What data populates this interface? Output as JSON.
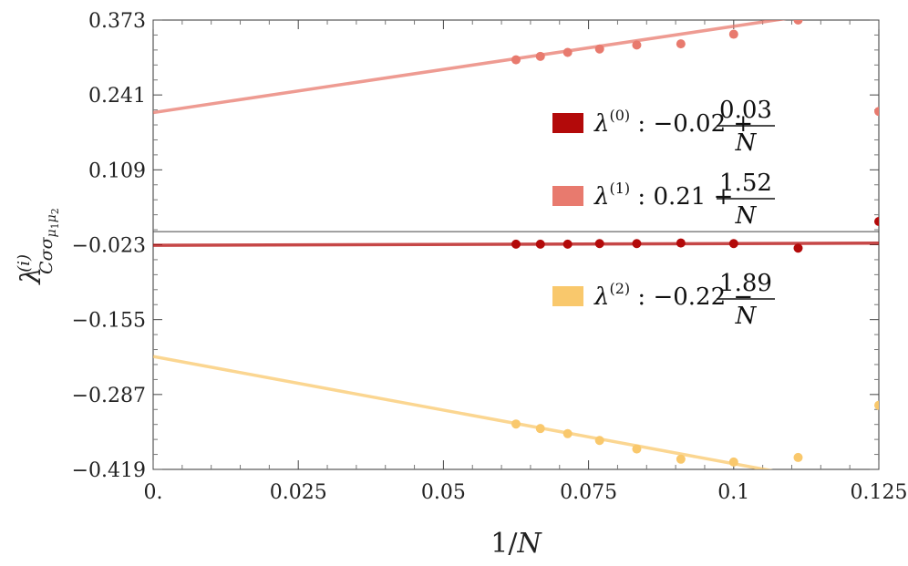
{
  "chart_data": {
    "type": "scatter",
    "xlabel": "1/N",
    "ylabel": "λ^(i)_{Cσσ_{μ1μ2}}",
    "xlim": [
      0,
      0.125
    ],
    "ylim": [
      -0.419,
      0.373
    ],
    "x_ticks": [
      "0.",
      "0.025",
      "0.05",
      "0.075",
      "0.1",
      "0.125"
    ],
    "x_tick_values": [
      0,
      0.025,
      0.05,
      0.075,
      0.1,
      0.125
    ],
    "y_ticks": [
      "0.373",
      "0.241",
      "0.109",
      "−0.023",
      "−0.155",
      "−0.287",
      "−0.419"
    ],
    "y_tick_values": [
      0.373,
      0.241,
      0.109,
      -0.023,
      -0.155,
      -0.287,
      -0.419
    ],
    "zero_line": 0,
    "legend_position": "right",
    "series": [
      {
        "legend": "λ^(0) : −0.02 + 0.03/N",
        "sup": "(0)",
        "const": "−0.02",
        "sign": "+",
        "numerator": "0.03",
        "denominator": "N",
        "color": "#b30a0a",
        "fit": {
          "intercept": -0.024,
          "slope": 0.03
        },
        "x": [
          0.0625,
          0.0667,
          0.0714,
          0.0769,
          0.0833,
          0.0909,
          0.1,
          0.1111,
          0.125
        ],
        "y": [
          -0.022,
          -0.022,
          -0.022,
          -0.021,
          -0.021,
          -0.02,
          -0.021,
          -0.029,
          0.018
        ]
      },
      {
        "legend": "λ^(1) : 0.21 + 1.52/N",
        "sup": "(1)",
        "const": "0.21",
        "sign": "+",
        "numerator": "1.52",
        "denominator": "N",
        "color": "#e87a6e",
        "fit": {
          "intercept": 0.21,
          "slope": 1.52
        },
        "x": [
          0.0625,
          0.0667,
          0.0714,
          0.0769,
          0.0833,
          0.0909,
          0.1,
          0.1111,
          0.125
        ],
        "y": [
          0.303,
          0.309,
          0.316,
          0.322,
          0.329,
          0.331,
          0.348,
          0.373,
          0.212
        ]
      },
      {
        "legend": "λ^(2) : −0.22 − 1.89/N",
        "sup": "(2)",
        "const": "−0.22",
        "sign": "−",
        "numerator": "1.89",
        "denominator": "N",
        "color": "#f9c86c",
        "fit": {
          "intercept": -0.22,
          "slope": -1.89
        },
        "x": [
          0.0625,
          0.0667,
          0.0714,
          0.0769,
          0.0833,
          0.0909,
          0.1,
          0.1111,
          0.125
        ],
        "y": [
          -0.339,
          -0.347,
          -0.356,
          -0.368,
          -0.383,
          -0.401,
          -0.406,
          -0.398,
          -0.306
        ]
      }
    ]
  }
}
